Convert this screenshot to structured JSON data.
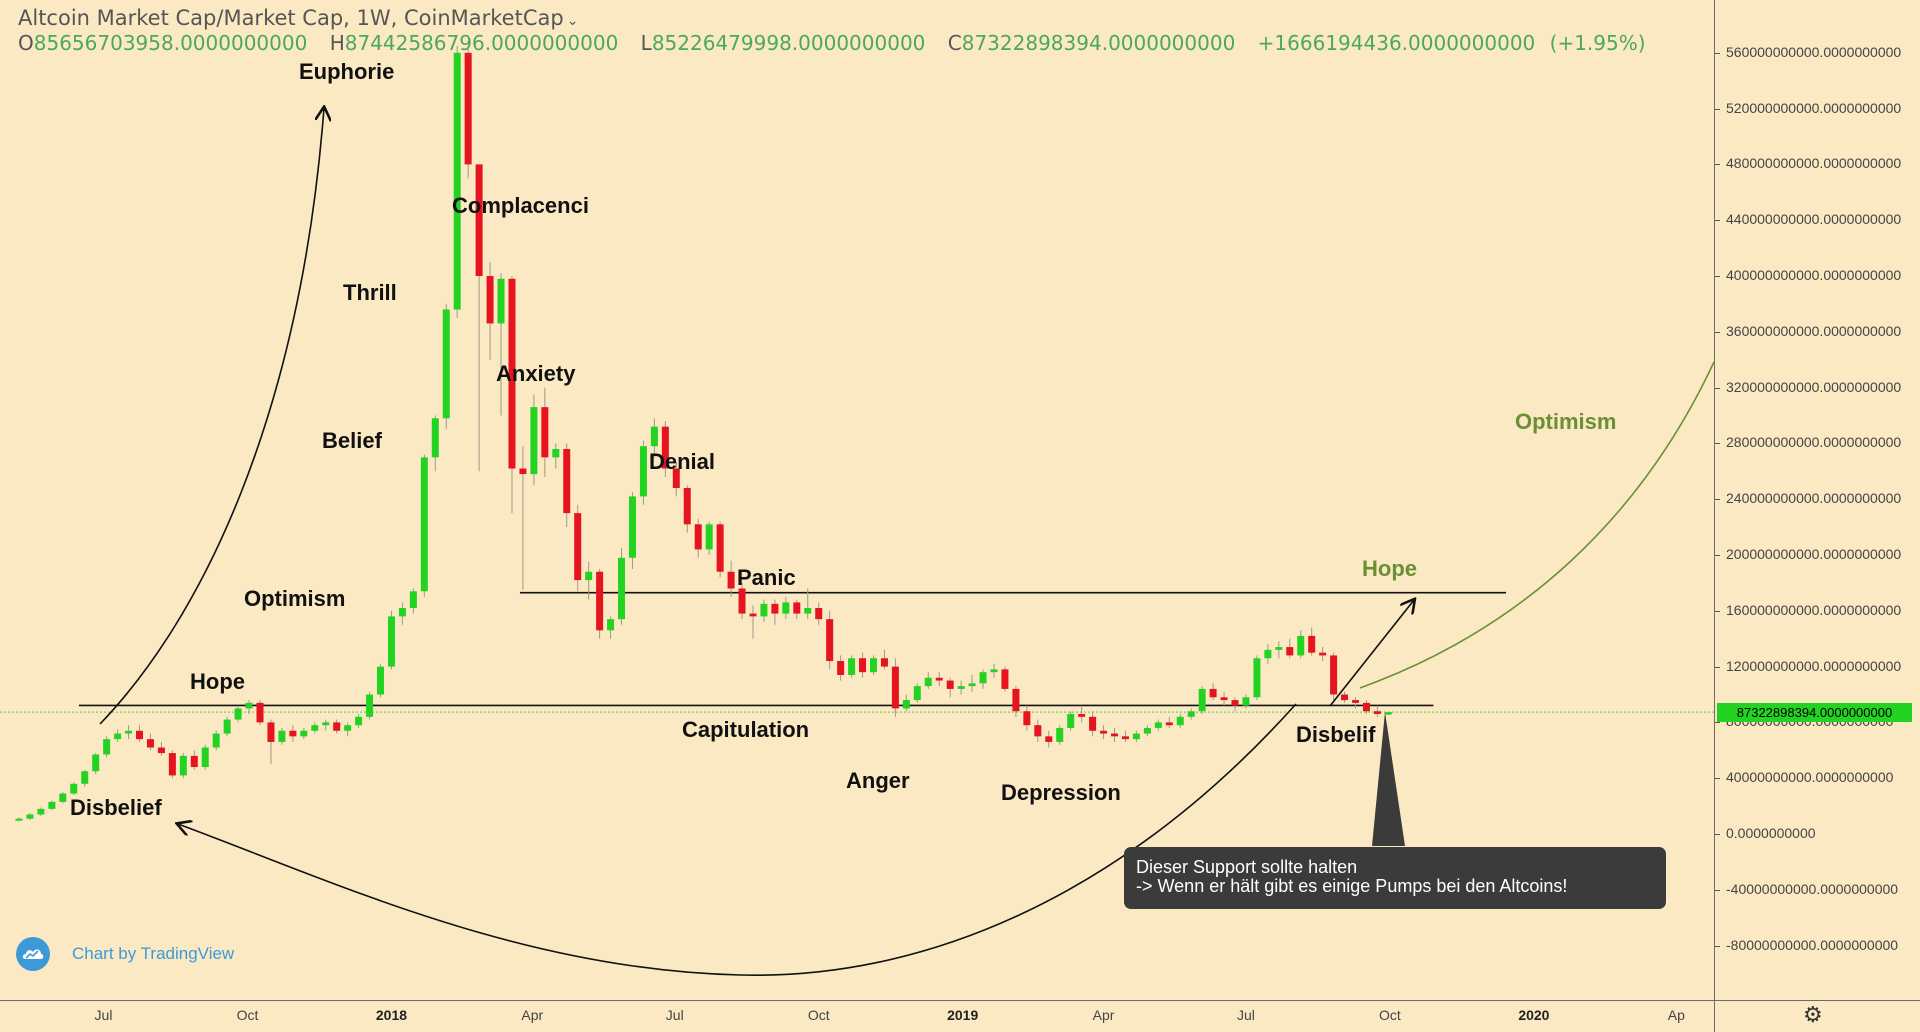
{
  "header": {
    "title": "Altcoin Market Cap/Market Cap, 1W, CoinMarketCap",
    "ohlc": {
      "o_label": "O",
      "o": "85656703958.0000000000",
      "h_label": "H",
      "h": "87442586796.0000000000",
      "l_label": "L",
      "l": "85226479998.0000000000",
      "c_label": "C",
      "c": "87322898394.0000000000",
      "change": "+1666194436.0000000000",
      "change_pct": "(+1.95%)"
    }
  },
  "colors": {
    "background": "#fbe9c4",
    "up_candle": "#22d322",
    "down_candle": "#e6141e",
    "annotation_green": "#6a8f35",
    "last_price_line": "#4cd04c",
    "brand": "#3d9ad8"
  },
  "annotations": {
    "phases": [
      "Disbelief",
      "Hope",
      "Optimism",
      "Belief",
      "Thrill",
      "Euphorie",
      "Complacenci",
      "Anxiety",
      "Denial",
      "Panic",
      "Capitulation",
      "Anger",
      "Depression",
      "Disbelif",
      "Hope",
      "Optimism"
    ],
    "note_line1": "Dieser Support sollte halten",
    "note_line2": "-> Wenn er hält gibt es einige Pumps bei den Altcoins!"
  },
  "brand": {
    "text": "Chart by TradingView",
    "icon": "tradingview-cloud-icon"
  },
  "toolbar": {
    "settings_icon": "gear-icon"
  },
  "price_axis": {
    "ticks": [
      "560000000000.0000000000",
      "520000000000.0000000000",
      "480000000000.0000000000",
      "440000000000.0000000000",
      "400000000000.0000000000",
      "360000000000.0000000000",
      "320000000000.0000000000",
      "280000000000.0000000000",
      "240000000000.0000000000",
      "200000000000.0000000000",
      "160000000000.0000000000",
      "120000000000.0000000000",
      "80000000000.0000000000",
      "40000000000.0000000000",
      "0.0000000000",
      "-40000000000.0000000000",
      "-80000000000.0000000000"
    ],
    "last_price": "87322898394.0000000000"
  },
  "time_axis": {
    "labels": [
      "Jul",
      "Oct",
      "2018",
      "Apr",
      "Jul",
      "Oct",
      "2019",
      "Apr",
      "Jul",
      "Oct",
      "2020",
      "Ap"
    ],
    "bold": [
      "2018",
      "2019",
      "2020"
    ]
  },
  "chart_data": {
    "type": "candlestick",
    "title": "Altcoin Market Cap/Market Cap, 1W, CoinMarketCap",
    "interval": "1W",
    "x_start": "2017-05-08",
    "ylim": [
      -100000000000,
      580000000000
    ],
    "grid": false,
    "support_level": 90000000000,
    "resistance_level": 173000000000,
    "last_price": 87322898394,
    "series": [
      {
        "date": "2017-05-08",
        "o": 10,
        "h": 12,
        "l": 9,
        "c": 11
      },
      {
        "date": "2017-05-15",
        "o": 11,
        "h": 15,
        "l": 10,
        "c": 14
      },
      {
        "date": "2017-05-22",
        "o": 14,
        "h": 19,
        "l": 13,
        "c": 18
      },
      {
        "date": "2017-05-29",
        "o": 18,
        "h": 24,
        "l": 17,
        "c": 23
      },
      {
        "date": "2017-06-05",
        "o": 23,
        "h": 30,
        "l": 22,
        "c": 29
      },
      {
        "date": "2017-06-12",
        "o": 29,
        "h": 37,
        "l": 28,
        "c": 36
      },
      {
        "date": "2017-06-19",
        "o": 36,
        "h": 46,
        "l": 34,
        "c": 45
      },
      {
        "date": "2017-06-26",
        "o": 45,
        "h": 58,
        "l": 43,
        "c": 57
      },
      {
        "date": "2017-07-03",
        "o": 57,
        "h": 70,
        "l": 55,
        "c": 68
      },
      {
        "date": "2017-07-10",
        "o": 68,
        "h": 75,
        "l": 66,
        "c": 72
      },
      {
        "date": "2017-07-17",
        "o": 72,
        "h": 78,
        "l": 68,
        "c": 74
      },
      {
        "date": "2017-07-24",
        "o": 74,
        "h": 78,
        "l": 66,
        "c": 68
      },
      {
        "date": "2017-07-31",
        "o": 68,
        "h": 72,
        "l": 60,
        "c": 62
      },
      {
        "date": "2017-08-07",
        "o": 62,
        "h": 66,
        "l": 56,
        "c": 58
      },
      {
        "date": "2017-08-14",
        "o": 58,
        "h": 60,
        "l": 40,
        "c": 42
      },
      {
        "date": "2017-08-21",
        "o": 42,
        "h": 58,
        "l": 40,
        "c": 56
      },
      {
        "date": "2017-08-28",
        "o": 56,
        "h": 60,
        "l": 46,
        "c": 48
      },
      {
        "date": "2017-09-04",
        "o": 48,
        "h": 64,
        "l": 46,
        "c": 62
      },
      {
        "date": "2017-09-11",
        "o": 62,
        "h": 74,
        "l": 60,
        "c": 72
      },
      {
        "date": "2017-09-18",
        "o": 72,
        "h": 84,
        "l": 70,
        "c": 82
      },
      {
        "date": "2017-09-25",
        "o": 82,
        "h": 92,
        "l": 80,
        "c": 90
      },
      {
        "date": "2017-10-02",
        "o": 90,
        "h": 96,
        "l": 86,
        "c": 94
      },
      {
        "date": "2017-10-09",
        "o": 94,
        "h": 96,
        "l": 78,
        "c": 80
      },
      {
        "date": "2017-10-16",
        "o": 80,
        "h": 82,
        "l": 50,
        "c": 66
      },
      {
        "date": "2017-10-23",
        "o": 66,
        "h": 76,
        "l": 64,
        "c": 74
      },
      {
        "date": "2017-10-30",
        "o": 74,
        "h": 78,
        "l": 66,
        "c": 70
      },
      {
        "date": "2017-11-06",
        "o": 70,
        "h": 76,
        "l": 68,
        "c": 74
      },
      {
        "date": "2017-11-13",
        "o": 74,
        "h": 80,
        "l": 72,
        "c": 78
      },
      {
        "date": "2017-11-20",
        "o": 78,
        "h": 82,
        "l": 74,
        "c": 80
      },
      {
        "date": "2017-11-27",
        "o": 80,
        "h": 82,
        "l": 72,
        "c": 74
      },
      {
        "date": "2017-12-04",
        "o": 74,
        "h": 80,
        "l": 70,
        "c": 78
      },
      {
        "date": "2017-12-11",
        "o": 78,
        "h": 86,
        "l": 76,
        "c": 84
      },
      {
        "date": "2017-12-18",
        "o": 84,
        "h": 102,
        "l": 82,
        "c": 100
      },
      {
        "date": "2017-12-25",
        "o": 100,
        "h": 122,
        "l": 98,
        "c": 120
      },
      {
        "date": "2018-01-01",
        "o": 120,
        "h": 160,
        "l": 118,
        "c": 156
      },
      {
        "date": "2018-01-08",
        "o": 156,
        "h": 166,
        "l": 150,
        "c": 162
      },
      {
        "date": "2018-01-15",
        "o": 162,
        "h": 176,
        "l": 158,
        "c": 174
      },
      {
        "date": "2018-01-22",
        "o": 174,
        "h": 272,
        "l": 170,
        "c": 270
      },
      {
        "date": "2018-01-29",
        "o": 270,
        "h": 300,
        "l": 260,
        "c": 298
      },
      {
        "date": "2018-02-05",
        "o": 298,
        "h": 380,
        "l": 290,
        "c": 376
      },
      {
        "date": "2018-02-12",
        "o": 376,
        "h": 565,
        "l": 370,
        "c": 560
      },
      {
        "date": "2018-02-19",
        "o": 560,
        "h": 565,
        "l": 470,
        "c": 480
      },
      {
        "date": "2018-02-26",
        "o": 480,
        "h": 480,
        "l": 260,
        "c": 400
      },
      {
        "date": "2018-03-05",
        "o": 400,
        "h": 410,
        "l": 340,
        "c": 366
      },
      {
        "date": "2018-03-12",
        "o": 366,
        "h": 402,
        "l": 300,
        "c": 398
      },
      {
        "date": "2018-03-19",
        "o": 398,
        "h": 400,
        "l": 230,
        "c": 262
      },
      {
        "date": "2018-03-26",
        "o": 262,
        "h": 278,
        "l": 175,
        "c": 258
      },
      {
        "date": "2018-04-02",
        "o": 258,
        "h": 315,
        "l": 250,
        "c": 306
      },
      {
        "date": "2018-04-09",
        "o": 306,
        "h": 320,
        "l": 256,
        "c": 270
      },
      {
        "date": "2018-04-16",
        "o": 270,
        "h": 280,
        "l": 262,
        "c": 276
      },
      {
        "date": "2018-04-23",
        "o": 276,
        "h": 280,
        "l": 220,
        "c": 230
      },
      {
        "date": "2018-04-30",
        "o": 230,
        "h": 236,
        "l": 174,
        "c": 182
      },
      {
        "date": "2018-05-07",
        "o": 182,
        "h": 195,
        "l": 168,
        "c": 188
      },
      {
        "date": "2018-05-14",
        "o": 188,
        "h": 190,
        "l": 140,
        "c": 146
      },
      {
        "date": "2018-05-21",
        "o": 146,
        "h": 156,
        "l": 140,
        "c": 154
      },
      {
        "date": "2018-05-28",
        "o": 154,
        "h": 205,
        "l": 150,
        "c": 198
      },
      {
        "date": "2018-06-04",
        "o": 198,
        "h": 245,
        "l": 190,
        "c": 242
      },
      {
        "date": "2018-06-11",
        "o": 242,
        "h": 282,
        "l": 236,
        "c": 278
      },
      {
        "date": "2018-06-18",
        "o": 278,
        "h": 298,
        "l": 270,
        "c": 292
      },
      {
        "date": "2018-06-25",
        "o": 292,
        "h": 296,
        "l": 256,
        "c": 262
      },
      {
        "date": "2018-07-02",
        "o": 262,
        "h": 266,
        "l": 242,
        "c": 248
      },
      {
        "date": "2018-07-09",
        "o": 248,
        "h": 250,
        "l": 216,
        "c": 222
      },
      {
        "date": "2018-07-16",
        "o": 222,
        "h": 226,
        "l": 198,
        "c": 204
      },
      {
        "date": "2018-07-23",
        "o": 204,
        "h": 224,
        "l": 200,
        "c": 222
      },
      {
        "date": "2018-07-30",
        "o": 222,
        "h": 224,
        "l": 184,
        "c": 188
      },
      {
        "date": "2018-08-06",
        "o": 188,
        "h": 196,
        "l": 170,
        "c": 176
      },
      {
        "date": "2018-08-13",
        "o": 176,
        "h": 180,
        "l": 154,
        "c": 158
      },
      {
        "date": "2018-08-20",
        "o": 158,
        "h": 164,
        "l": 140,
        "c": 156
      },
      {
        "date": "2018-08-27",
        "o": 156,
        "h": 168,
        "l": 152,
        "c": 165
      },
      {
        "date": "2018-09-03",
        "o": 165,
        "h": 168,
        "l": 150,
        "c": 158
      },
      {
        "date": "2018-09-10",
        "o": 158,
        "h": 170,
        "l": 154,
        "c": 166
      },
      {
        "date": "2018-09-17",
        "o": 166,
        "h": 168,
        "l": 154,
        "c": 158
      },
      {
        "date": "2018-09-24",
        "o": 158,
        "h": 176,
        "l": 154,
        "c": 162
      },
      {
        "date": "2018-10-01",
        "o": 162,
        "h": 166,
        "l": 150,
        "c": 154
      },
      {
        "date": "2018-10-08",
        "o": 154,
        "h": 160,
        "l": 118,
        "c": 124
      },
      {
        "date": "2018-10-15",
        "o": 124,
        "h": 128,
        "l": 110,
        "c": 114
      },
      {
        "date": "2018-10-22",
        "o": 114,
        "h": 128,
        "l": 112,
        "c": 126
      },
      {
        "date": "2018-10-29",
        "o": 126,
        "h": 130,
        "l": 112,
        "c": 116
      },
      {
        "date": "2018-11-05",
        "o": 116,
        "h": 128,
        "l": 114,
        "c": 126
      },
      {
        "date": "2018-11-12",
        "o": 126,
        "h": 132,
        "l": 118,
        "c": 120
      },
      {
        "date": "2018-11-19",
        "o": 120,
        "h": 126,
        "l": 84,
        "c": 90
      },
      {
        "date": "2018-11-26",
        "o": 90,
        "h": 100,
        "l": 88,
        "c": 96
      },
      {
        "date": "2018-12-03",
        "o": 96,
        "h": 108,
        "l": 94,
        "c": 106
      },
      {
        "date": "2018-12-10",
        "o": 106,
        "h": 116,
        "l": 104,
        "c": 112
      },
      {
        "date": "2018-12-17",
        "o": 112,
        "h": 116,
        "l": 106,
        "c": 110
      },
      {
        "date": "2018-12-24",
        "o": 110,
        "h": 112,
        "l": 98,
        "c": 104
      },
      {
        "date": "2018-12-31",
        "o": 104,
        "h": 110,
        "l": 100,
        "c": 106
      },
      {
        "date": "2019-01-07",
        "o": 106,
        "h": 114,
        "l": 102,
        "c": 108
      },
      {
        "date": "2019-01-14",
        "o": 108,
        "h": 118,
        "l": 104,
        "c": 116
      },
      {
        "date": "2019-01-21",
        "o": 116,
        "h": 122,
        "l": 112,
        "c": 118
      },
      {
        "date": "2019-01-28",
        "o": 118,
        "h": 120,
        "l": 102,
        "c": 104
      },
      {
        "date": "2019-02-04",
        "o": 104,
        "h": 106,
        "l": 84,
        "c": 88
      },
      {
        "date": "2019-02-11",
        "o": 88,
        "h": 92,
        "l": 74,
        "c": 78
      },
      {
        "date": "2019-02-18",
        "o": 78,
        "h": 82,
        "l": 66,
        "c": 70
      },
      {
        "date": "2019-02-25",
        "o": 70,
        "h": 74,
        "l": 62,
        "c": 66
      },
      {
        "date": "2019-03-04",
        "o": 66,
        "h": 78,
        "l": 64,
        "c": 76
      },
      {
        "date": "2019-03-11",
        "o": 76,
        "h": 88,
        "l": 74,
        "c": 86
      },
      {
        "date": "2019-03-18",
        "o": 86,
        "h": 92,
        "l": 80,
        "c": 84
      },
      {
        "date": "2019-03-25",
        "o": 84,
        "h": 88,
        "l": 70,
        "c": 74
      },
      {
        "date": "2019-04-01",
        "o": 74,
        "h": 78,
        "l": 68,
        "c": 72
      },
      {
        "date": "2019-04-08",
        "o": 72,
        "h": 76,
        "l": 66,
        "c": 70
      },
      {
        "date": "2019-04-15",
        "o": 70,
        "h": 74,
        "l": 66,
        "c": 68
      },
      {
        "date": "2019-04-22",
        "o": 68,
        "h": 74,
        "l": 66,
        "c": 72
      },
      {
        "date": "2019-04-29",
        "o": 72,
        "h": 78,
        "l": 70,
        "c": 76
      },
      {
        "date": "2019-05-06",
        "o": 76,
        "h": 82,
        "l": 74,
        "c": 80
      },
      {
        "date": "2019-05-13",
        "o": 80,
        "h": 84,
        "l": 76,
        "c": 78
      },
      {
        "date": "2019-05-20",
        "o": 78,
        "h": 86,
        "l": 76,
        "c": 84
      },
      {
        "date": "2019-05-27",
        "o": 84,
        "h": 90,
        "l": 82,
        "c": 88
      },
      {
        "date": "2019-06-03",
        "o": 88,
        "h": 106,
        "l": 86,
        "c": 104
      },
      {
        "date": "2019-06-10",
        "o": 104,
        "h": 108,
        "l": 96,
        "c": 98
      },
      {
        "date": "2019-06-17",
        "o": 98,
        "h": 102,
        "l": 92,
        "c": 96
      },
      {
        "date": "2019-06-24",
        "o": 96,
        "h": 98,
        "l": 88,
        "c": 92
      },
      {
        "date": "2019-07-01",
        "o": 92,
        "h": 100,
        "l": 90,
        "c": 98
      },
      {
        "date": "2019-07-08",
        "o": 98,
        "h": 128,
        "l": 96,
        "c": 126
      },
      {
        "date": "2019-07-15",
        "o": 126,
        "h": 136,
        "l": 122,
        "c": 132
      },
      {
        "date": "2019-07-22",
        "o": 132,
        "h": 138,
        "l": 126,
        "c": 134
      },
      {
        "date": "2019-07-29",
        "o": 134,
        "h": 140,
        "l": 126,
        "c": 128
      },
      {
        "date": "2019-08-05",
        "o": 128,
        "h": 146,
        "l": 126,
        "c": 142
      },
      {
        "date": "2019-08-12",
        "o": 142,
        "h": 148,
        "l": 128,
        "c": 130
      },
      {
        "date": "2019-08-19",
        "o": 130,
        "h": 134,
        "l": 124,
        "c": 128
      },
      {
        "date": "2019-08-26",
        "o": 128,
        "h": 130,
        "l": 96,
        "c": 100
      },
      {
        "date": "2019-09-02",
        "o": 100,
        "h": 102,
        "l": 94,
        "c": 96
      },
      {
        "date": "2019-09-09",
        "o": 96,
        "h": 98,
        "l": 90,
        "c": 94
      },
      {
        "date": "2019-09-16",
        "o": 94,
        "h": 96,
        "l": 86,
        "c": 88
      },
      {
        "date": "2019-09-23",
        "o": 88,
        "h": 92,
        "l": 84,
        "c": 86
      },
      {
        "date": "2019-09-30",
        "o": 85.66,
        "h": 87.44,
        "l": 85.23,
        "c": 87.32
      }
    ],
    "value_unit_note": "candle o/h/l/c values are in billions of market cap (x1e9)"
  }
}
